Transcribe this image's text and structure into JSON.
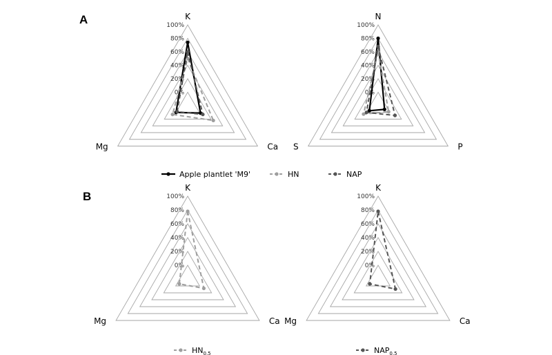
{
  "panels": [
    {
      "label": "A"
    },
    {
      "label": "B"
    }
  ],
  "styles": {
    "Apple plantlet 'M9'": {
      "color": "#000000",
      "dash": "",
      "width": 2.2
    },
    "HN": {
      "color": "#9e9e9e",
      "dash": "6,4",
      "width": 2
    },
    "NAP": {
      "color": "#555555",
      "dash": "6,4",
      "width": 2
    },
    "HN0.5": {
      "color": "#9e9e9e",
      "dash": "6,4",
      "width": 2
    },
    "NAP0.5": {
      "color": "#555555",
      "dash": "6,4",
      "width": 2
    }
  },
  "legend_A": [
    {
      "text": "Apple plantlet 'M9'",
      "base": "Apple plantlet 'M9'",
      "sub": "",
      "key": "Apple plantlet 'M9'"
    },
    {
      "text": "HN",
      "base": "HN",
      "sub": "",
      "key": "HN"
    },
    {
      "text": "NAP",
      "base": "NAP",
      "sub": "",
      "key": "NAP"
    }
  ],
  "legend_B": [
    {
      "text": "HN0.5",
      "base": "HN",
      "sub": "0.5",
      "key": "HN0.5"
    },
    {
      "text": "NAP0.5",
      "base": "NAP",
      "sub": "0.5",
      "key": "NAP0.5"
    }
  ],
  "chart_data": [
    {
      "type": "radar",
      "panel": "A",
      "axes": [
        "K",
        "Ca",
        "Mg"
      ],
      "tick_labels": [
        "0%",
        "20%",
        "40%",
        "60%",
        "80%",
        "100%"
      ],
      "range": [
        -20,
        100
      ],
      "series": [
        {
          "name": "Apple plantlet 'M9'",
          "values": [
            74,
            2,
            0
          ]
        },
        {
          "name": "HN",
          "values": [
            50,
            24,
            6
          ]
        },
        {
          "name": "NAP",
          "values": [
            60,
            6,
            -2
          ]
        }
      ]
    },
    {
      "type": "radar",
      "panel": "A",
      "axes": [
        "N",
        "P",
        "S"
      ],
      "tick_labels": [
        "0%",
        "20%",
        "40%",
        "60%",
        "80%",
        "100%"
      ],
      "range": [
        -20,
        100
      ],
      "series": [
        {
          "name": "Apple plantlet 'M9'",
          "values": [
            80,
            -9,
            -5
          ]
        },
        {
          "name": "HN",
          "values": [
            60,
            -2,
            5
          ]
        },
        {
          "name": "NAP",
          "values": [
            68,
            9,
            0
          ]
        }
      ]
    },
    {
      "type": "radar",
      "panel": "B",
      "axes": [
        "K",
        "Ca",
        "Mg"
      ],
      "tick_labels": [
        "0%",
        "20%",
        "40%",
        "60%",
        "80%",
        "100%"
      ],
      "range": [
        -20,
        100
      ],
      "series": [
        {
          "name": "HN0.5",
          "values": [
            78,
            7,
            -6
          ]
        }
      ]
    },
    {
      "type": "radar",
      "panel": "B",
      "axes": [
        "K",
        "Ca",
        "Mg"
      ],
      "tick_labels": [
        "0%",
        "20%",
        "40%",
        "60%",
        "80%",
        "100%"
      ],
      "range": [
        -20,
        100
      ],
      "series": [
        {
          "name": "NAP0.5",
          "values": [
            78,
            9,
            -6
          ]
        }
      ]
    }
  ]
}
